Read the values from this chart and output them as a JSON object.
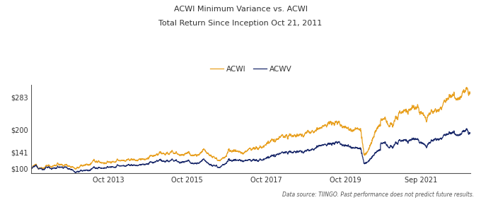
{
  "title_line1": "ACWI Minimum Variance vs. ACWI",
  "title_line2": "Total Return Since Inception Oct 21, 2011",
  "legend_labels": [
    "ACWI",
    "ACWV"
  ],
  "acwi_color": "#E8A020",
  "acwv_color": "#1B2A6B",
  "background_color": "#FFFFFF",
  "ylabel_ticks": [
    "$100",
    "$141",
    "$200",
    "$283"
  ],
  "ytick_positions": [
    100,
    141,
    200,
    283
  ],
  "xlabel_ticks": [
    "Oct 2013",
    "Oct 2015",
    "Oct 2017",
    "Oct 2019",
    "Sep 2021"
  ],
  "source_text": "Data source: TIINGO. Past performance does not predict future results.",
  "ylim": [
    88,
    315
  ],
  "line_width": 0.9
}
